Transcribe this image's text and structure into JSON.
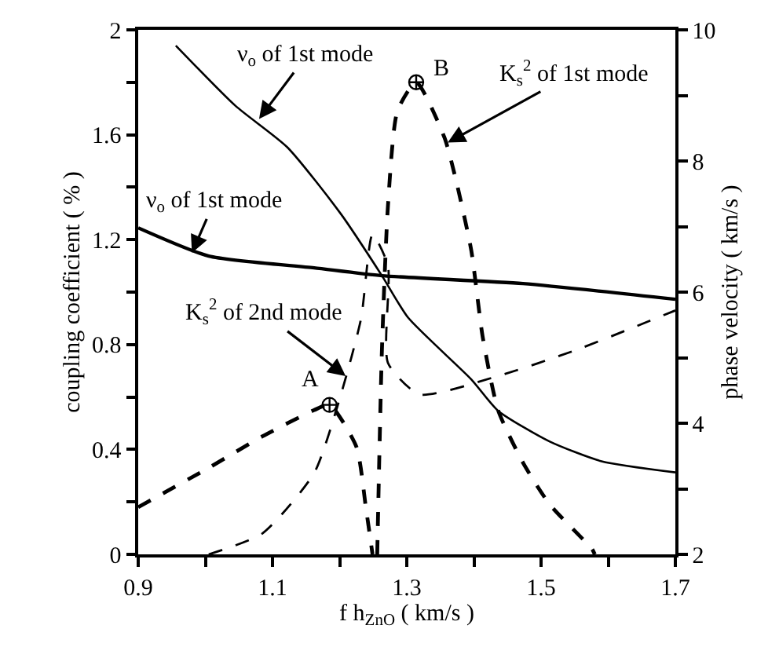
{
  "chart_data": {
    "type": "line",
    "xlabel": "f h$_{ZnO}$ ( km/s )",
    "ylabel": "coupling coefficient ( % )",
    "y2label": "phase velocity ( km/s )",
    "xlim": [
      0.9,
      1.7
    ],
    "xticks": [
      0.9,
      {
        "value": 1.0,
        "label": null
      },
      1.1,
      {
        "value": 1.2,
        "label": null
      },
      1.3,
      {
        "value": 1.4,
        "label": null
      },
      1.5,
      {
        "value": 1.6,
        "label": null
      },
      1.7
    ],
    "ylim": [
      0,
      2
    ],
    "yticks": [
      0,
      {
        "value": 0.2,
        "label": null
      },
      0.4,
      {
        "value": 0.6,
        "label": null
      },
      0.8,
      {
        "value": 1.0,
        "label": null
      },
      1.2,
      {
        "value": 1.4,
        "label": null
      },
      1.6,
      {
        "value": 1.8,
        "label": null
      },
      2
    ],
    "y2lim": [
      2,
      10
    ],
    "y2ticks": [
      2,
      {
        "value": 3,
        "label": null
      },
      4,
      {
        "value": 5,
        "label": null
      },
      6,
      {
        "value": 7,
        "label": null
      },
      8,
      {
        "value": 9,
        "label": null
      },
      10
    ],
    "series": [
      {
        "color": "#000000",
        "axis": "y2",
        "line_style": "solid",
        "x": [
          0.956,
          1.045,
          1.122,
          1.202,
          1.263,
          1.302,
          1.396,
          1.436,
          1.513,
          1.59,
          1.7
        ],
        "values": [
          9.76,
          8.84,
          8.21,
          7.19,
          6.25,
          5.61,
          4.67,
          4.19,
          3.72,
          3.42,
          3.25
        ]
      },
      {
        "color": "#000000",
        "axis": "y2",
        "line_style": "solid",
        "x": [
          0.9,
          1.005,
          1.162,
          1.263,
          1.473,
          1.7
        ],
        "values": [
          6.98,
          6.55,
          6.37,
          6.25,
          6.13,
          5.89
        ]
      },
      {
        "color": "#000000",
        "line_style": "dashed",
        "x": [
          0.9,
          1.005,
          1.085,
          1.162,
          1.185,
          1.225,
          1.239,
          1.249
        ],
        "values": [
          0.18,
          0.33,
          0.45,
          0.55,
          0.57,
          0.41,
          0.18,
          0
        ]
      },
      {
        "color": "#000000",
        "line_style": "dashed",
        "x": [
          1.005,
          1.085,
          1.162,
          1.202,
          1.232,
          1.249,
          1.272,
          1.272,
          1.319,
          1.436,
          1.553,
          1.7
        ],
        "values": [
          0,
          0.08,
          0.31,
          0.61,
          0.9,
          1.22,
          1.1,
          0.73,
          0.61,
          0.68,
          0.78,
          0.93
        ]
      },
      {
        "color": "#000000",
        "line_style": "dashed",
        "x": [
          1.256,
          1.263,
          1.272,
          1.286,
          1.314,
          1.356,
          1.373,
          1.396,
          1.413,
          1.436,
          1.473,
          1.513,
          1.576,
          1.58
        ],
        "values": [
          0,
          0.78,
          1.33,
          1.69,
          1.8,
          1.59,
          1.43,
          1.16,
          0.83,
          0.55,
          0.35,
          0.19,
          0.02,
          0
        ]
      },
      {
        "type": "scatter",
        "color": "#000000",
        "marker": "cross",
        "x": [
          1.185,
          1.314
        ],
        "values": [
          0.57,
          1.8
        ]
      }
    ],
    "annotations": [
      {
        "text": "ν$_{o}$ of 1st mode",
        "x": 1.08,
        "y": 1.66
      },
      {
        "text": "ν$_{o}$ of 1st mode",
        "x": 0.98,
        "y": 1.15
      },
      {
        "text": "K$_{s}$$^{2}$ of 1st mode",
        "x": 1.361,
        "y": 1.57
      },
      {
        "text": "K$_{s}$$^{2}$ of 2nd mode",
        "x": 1.209,
        "y": 0.68
      },
      {
        "text": "A",
        "x": 1.185,
        "y": 0.57
      },
      {
        "text": "B",
        "x": 1.314,
        "y": 1.8
      }
    ]
  }
}
